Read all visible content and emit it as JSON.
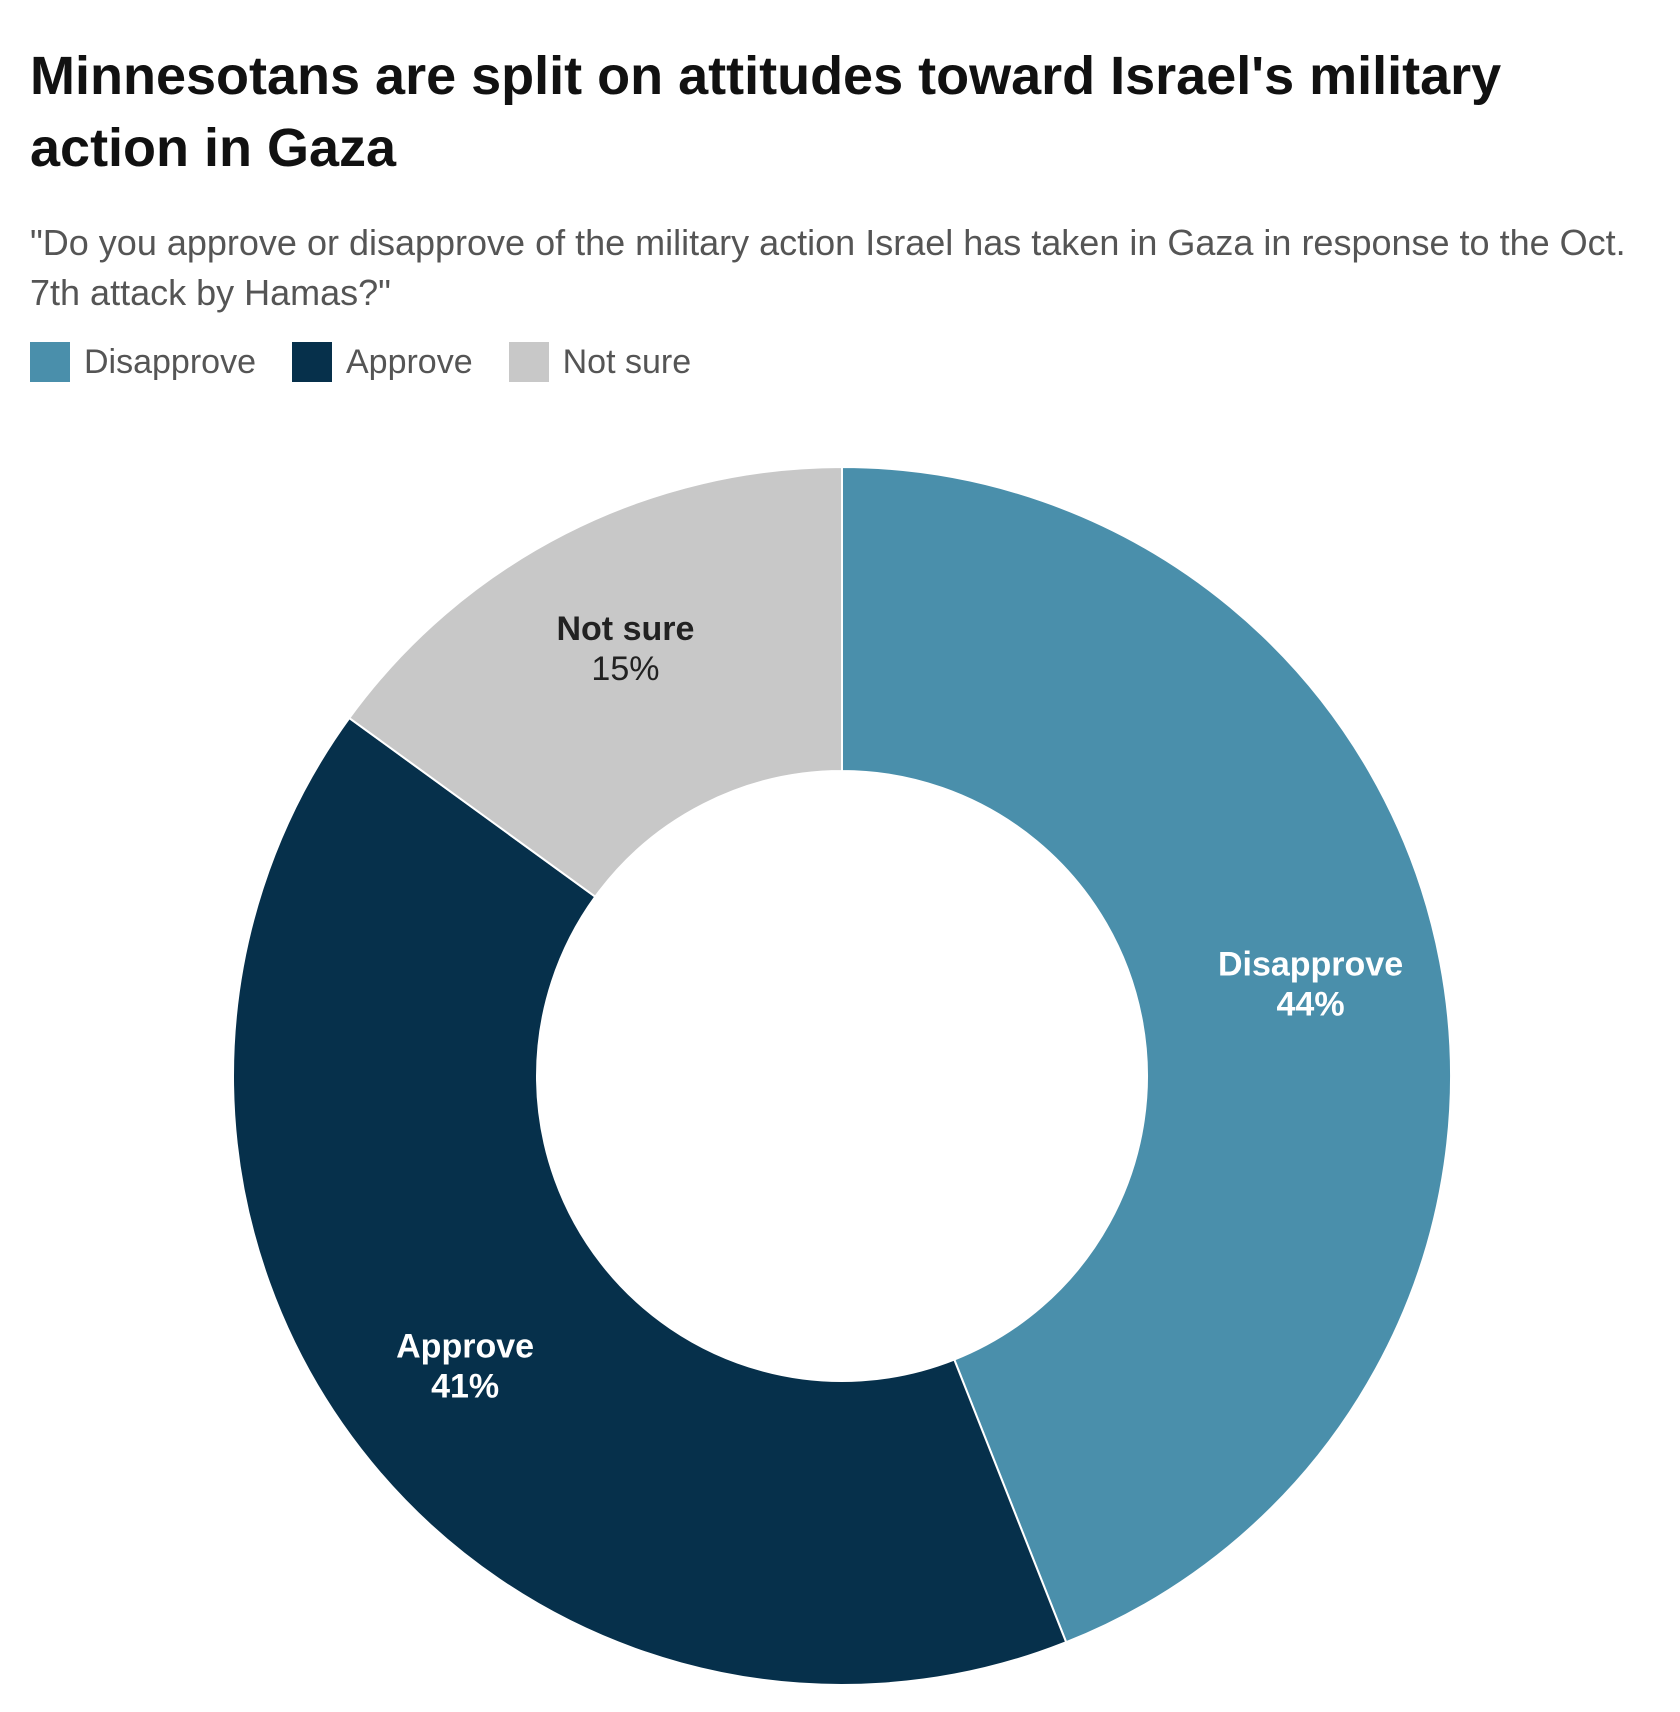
{
  "chart_data": {
    "type": "donut",
    "title": "Minnesotans are split on attitudes toward Israel's military action in Gaza",
    "subtitle": "\"Do you approve or disapprove of the military action Israel has taken in Gaza in response to the Oct. 7th attack by Hamas?\"",
    "categories": [
      "Disapprove",
      "Approve",
      "Not sure"
    ],
    "values": [
      44,
      41,
      15
    ],
    "value_labels": [
      "44%",
      "41%",
      "15%"
    ],
    "colors": [
      "#4a8fab",
      "#06304b",
      "#c8c8c8"
    ]
  }
}
